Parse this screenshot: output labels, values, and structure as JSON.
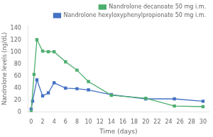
{
  "chart_data": {
    "type": "line",
    "xlabel": "Time (days)",
    "ylabel": "Nandrolone levels (ng/dL)",
    "series": [
      {
        "name": "Nandrolone decanoate 50 mg i.m.",
        "color": "#4cae6e",
        "marker": "square",
        "x": [
          0,
          0.5,
          1,
          2,
          3,
          4,
          6,
          8,
          10,
          14,
          20,
          25,
          30
        ],
        "values": [
          0,
          63,
          121,
          102,
          101,
          101,
          84,
          70,
          51,
          28,
          23,
          10,
          9
        ]
      },
      {
        "name": "Nandrolone hexyloxyphenylpropionate 50 mg i.m.",
        "color": "#4472c4",
        "marker": "square",
        "x": [
          0,
          0.25,
          1,
          2,
          3,
          4,
          6,
          8,
          10,
          14,
          20,
          25,
          30
        ],
        "values": [
          5,
          18,
          54,
          27,
          32,
          49,
          40,
          39,
          37,
          29,
          22,
          22,
          18
        ]
      }
    ],
    "xlim": [
      -0.5,
      31
    ],
    "ylim": [
      0,
      145
    ],
    "xticks": [
      0,
      2,
      4,
      6,
      8,
      10,
      12,
      14,
      16,
      18,
      20,
      22,
      24,
      26,
      28,
      30
    ],
    "yticks": [
      0,
      20,
      40,
      60,
      80,
      100,
      120,
      140
    ],
    "grid": false,
    "legend": "upper right"
  }
}
